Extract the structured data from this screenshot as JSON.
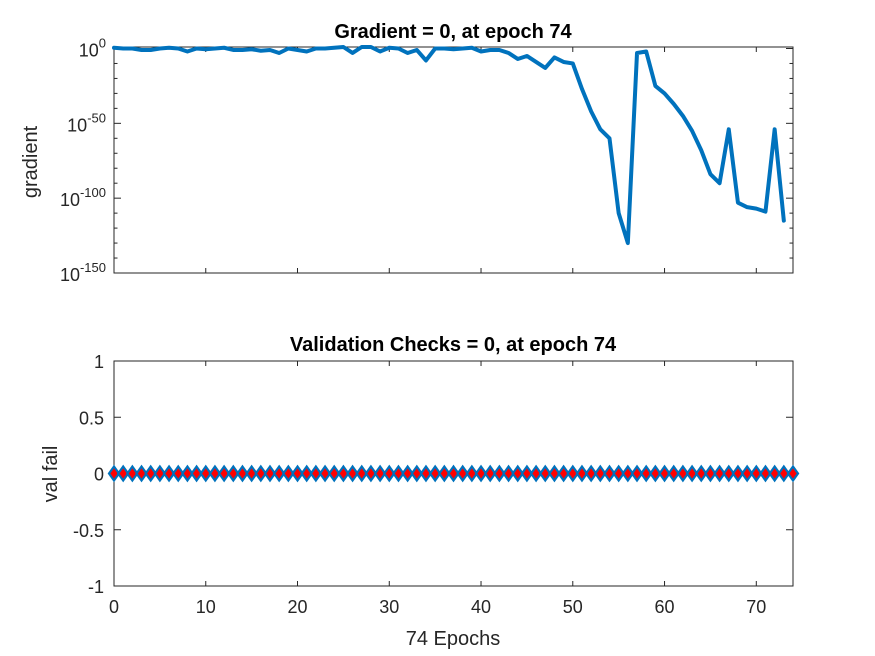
{
  "chart_data": [
    {
      "type": "line",
      "title": "Gradient = 0, at epoch 74",
      "xlabel": "",
      "ylabel": "gradient",
      "yscale": "log",
      "xlim": [
        0,
        74
      ],
      "ylim": [
        1e-150,
        10.0
      ],
      "x_ticks": [
        0,
        10,
        20,
        30,
        40,
        50,
        60,
        70
      ],
      "y_ticks": [
        {
          "base": "10",
          "exp": "0",
          "value": 0
        },
        {
          "base": "10",
          "exp": "-50",
          "value": -50
        },
        {
          "base": "10",
          "exp": "-100",
          "value": -100
        },
        {
          "base": "10",
          "exp": "-150",
          "value": -150
        }
      ],
      "grid": false,
      "color": "#0072BD",
      "log10_values": [
        0.5,
        0,
        0,
        -1,
        -1,
        0,
        0.5,
        0,
        -2,
        0,
        -0.5,
        0,
        0.5,
        -1,
        -1,
        -0.5,
        -1.5,
        -1,
        -3,
        0,
        -1,
        -2,
        0,
        0,
        0.5,
        1,
        -3,
        1,
        1,
        -2,
        0.5,
        0,
        -3,
        -1,
        -8,
        0,
        0,
        -0.5,
        0,
        0.5,
        -2,
        -1,
        -1,
        -3,
        -7,
        -5,
        -9,
        -13,
        -6,
        -9,
        -10,
        -27,
        -42,
        -54,
        -60,
        -110,
        -130,
        -3,
        -2,
        -25,
        -30,
        -37,
        -45,
        -55,
        -68,
        -84,
        -90,
        -54,
        -103,
        -106,
        -107,
        -109,
        -54,
        -115
      ]
    },
    {
      "type": "line",
      "title": "Validation Checks = 0, at epoch 74",
      "xlabel": "74 Epochs",
      "ylabel": "val fail",
      "xlim": [
        0,
        74
      ],
      "ylim": [
        -1,
        1
      ],
      "x_ticks": [
        "0",
        "10",
        "20",
        "30",
        "40",
        "50",
        "60",
        "70"
      ],
      "y_ticks": [
        "-1",
        "-0.5",
        "0",
        "0.5",
        "1"
      ],
      "grid": false,
      "marker": "diamond",
      "line_color": "#0072BD",
      "marker_face_color": "#FF0000",
      "marker_edge_color": "#0072BD",
      "values": [
        0,
        0,
        0,
        0,
        0,
        0,
        0,
        0,
        0,
        0,
        0,
        0,
        0,
        0,
        0,
        0,
        0,
        0,
        0,
        0,
        0,
        0,
        0,
        0,
        0,
        0,
        0,
        0,
        0,
        0,
        0,
        0,
        0,
        0,
        0,
        0,
        0,
        0,
        0,
        0,
        0,
        0,
        0,
        0,
        0,
        0,
        0,
        0,
        0,
        0,
        0,
        0,
        0,
        0,
        0,
        0,
        0,
        0,
        0,
        0,
        0,
        0,
        0,
        0,
        0,
        0,
        0,
        0,
        0,
        0,
        0,
        0,
        0,
        0,
        0
      ]
    }
  ]
}
